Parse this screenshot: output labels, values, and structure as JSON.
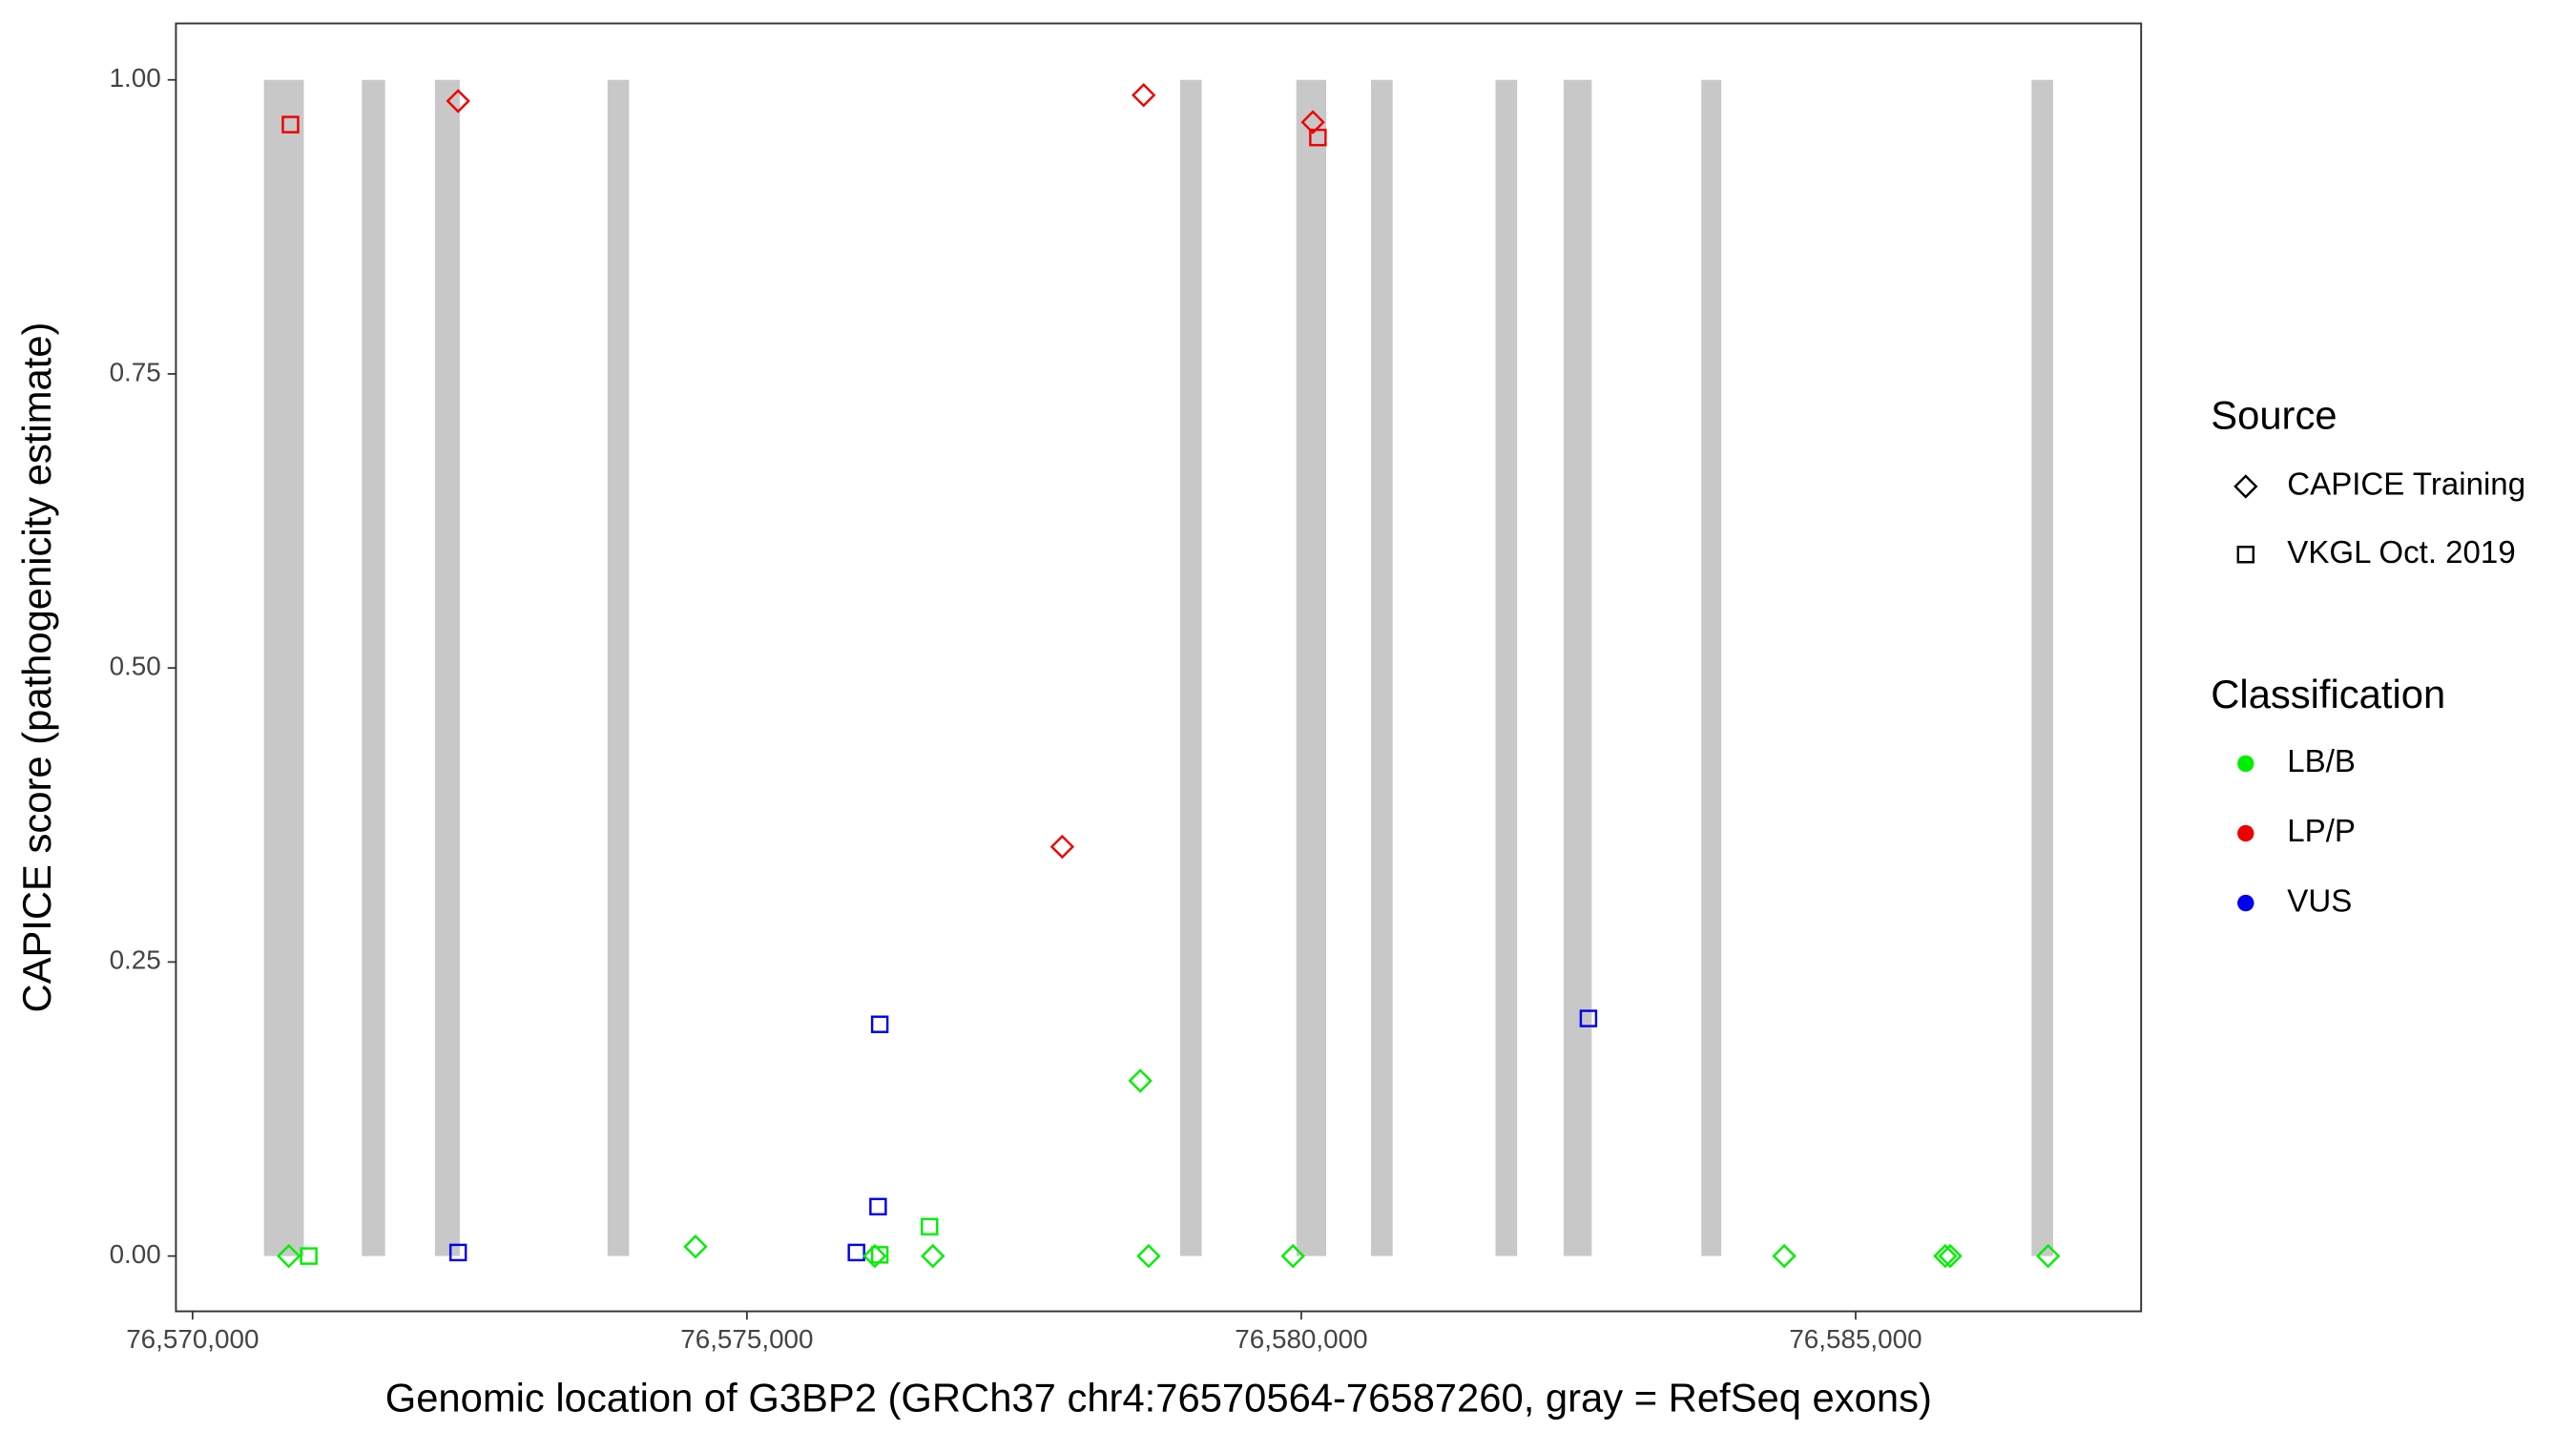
{
  "chart_data": {
    "type": "scatter",
    "x_label": "Genomic location of G3BP2 (GRCh37 chr4:76570564-76587260, gray = RefSeq exons)",
    "y_label": "CAPICE score (pathogenicity estimate)",
    "xlim": [
      76569850,
      76587575
    ],
    "ylim": [
      -0.047,
      1.048
    ],
    "xticks": [
      {
        "value": 76570000,
        "label": "76,570,000"
      },
      {
        "value": 76575000,
        "label": "76,575,000"
      },
      {
        "value": 76580000,
        "label": "76,580,000"
      },
      {
        "value": 76585000,
        "label": "76,585,000"
      }
    ],
    "yticks": [
      {
        "value": 0,
        "label": "0.00"
      },
      {
        "value": 0.25,
        "label": "0.25"
      },
      {
        "value": 0.5,
        "label": "0.50"
      },
      {
        "value": 0.75,
        "label": "0.75"
      },
      {
        "value": 1,
        "label": "1.00"
      }
    ],
    "grid": false,
    "exon_color": "#c8c8c8",
    "exon_y": [
      0,
      1
    ],
    "exons": [
      {
        "start": 76570644,
        "end": 76571003
      },
      {
        "start": 76571527,
        "end": 76571737
      },
      {
        "start": 76572186,
        "end": 76572410
      },
      {
        "start": 76573743,
        "end": 76573937
      },
      {
        "start": 76578907,
        "end": 76579102
      },
      {
        "start": 76579955,
        "end": 76580225
      },
      {
        "start": 76580629,
        "end": 76580824
      },
      {
        "start": 76581752,
        "end": 76581947
      },
      {
        "start": 76582366,
        "end": 76582620
      },
      {
        "start": 76583608,
        "end": 76583788
      },
      {
        "start": 76586587,
        "end": 76586781
      }
    ],
    "legend_position": "right",
    "source_legend": {
      "title": "Source",
      "items": [
        {
          "name": "CAPICE Training",
          "shape": "diamond"
        },
        {
          "name": "VKGL Oct. 2019",
          "shape": "square"
        }
      ]
    },
    "classification_legend": {
      "title": "Classification",
      "items": [
        {
          "name": "LB/B",
          "color": "#00ee00"
        },
        {
          "name": "LP/P",
          "color": "#ee0000"
        },
        {
          "name": "VUS",
          "color": "#0000ee"
        }
      ]
    },
    "points": [
      {
        "x": 76570883,
        "y": 0.962,
        "source": "VKGL Oct. 2019",
        "classification": "LP/P"
      },
      {
        "x": 76572395,
        "y": 0.982,
        "source": "CAPICE Training",
        "classification": "LP/P"
      },
      {
        "x": 76578578,
        "y": 0.987,
        "source": "CAPICE Training",
        "classification": "LP/P"
      },
      {
        "x": 76580105,
        "y": 0.964,
        "source": "CAPICE Training",
        "classification": "LP/P"
      },
      {
        "x": 76580150,
        "y": 0.951,
        "source": "VKGL Oct. 2019",
        "classification": "LP/P"
      },
      {
        "x": 76577844,
        "y": 0.348,
        "source": "CAPICE Training",
        "classification": "LP/P"
      },
      {
        "x": 76576198,
        "y": 0.197,
        "source": "VKGL Oct. 2019",
        "classification": "VUS"
      },
      {
        "x": 76582590,
        "y": 0.202,
        "source": "VKGL Oct. 2019",
        "classification": "VUS"
      },
      {
        "x": 76576183,
        "y": 0.042,
        "source": "VKGL Oct. 2019",
        "classification": "VUS"
      },
      {
        "x": 76572395,
        "y": 0.003,
        "source": "VKGL Oct. 2019",
        "classification": "VUS"
      },
      {
        "x": 76575988,
        "y": 0.003,
        "source": "VKGL Oct. 2019",
        "classification": "VUS"
      },
      {
        "x": 76578548,
        "y": 0.149,
        "source": "CAPICE Training",
        "classification": "LB/B"
      },
      {
        "x": 76576647,
        "y": 0.025,
        "source": "VKGL Oct. 2019",
        "classification": "LB/B"
      },
      {
        "x": 76570868,
        "y": 0,
        "source": "CAPICE Training",
        "classification": "LB/B"
      },
      {
        "x": 76571048,
        "y": 0,
        "source": "VKGL Oct. 2019",
        "classification": "LB/B"
      },
      {
        "x": 76574536,
        "y": 0.008,
        "source": "CAPICE Training",
        "classification": "LB/B"
      },
      {
        "x": 76576153,
        "y": 0,
        "source": "CAPICE Training",
        "classification": "LB/B"
      },
      {
        "x": 76576198,
        "y": 0.001,
        "source": "VKGL Oct. 2019",
        "classification": "LB/B"
      },
      {
        "x": 76576677,
        "y": 0,
        "source": "CAPICE Training",
        "classification": "LB/B"
      },
      {
        "x": 76578623,
        "y": 0,
        "source": "CAPICE Training",
        "classification": "LB/B"
      },
      {
        "x": 76579925,
        "y": 0,
        "source": "CAPICE Training",
        "classification": "LB/B"
      },
      {
        "x": 76584356,
        "y": 0,
        "source": "CAPICE Training",
        "classification": "LB/B"
      },
      {
        "x": 76585808,
        "y": 0,
        "source": "CAPICE Training",
        "classification": "LB/B"
      },
      {
        "x": 76585853,
        "y": 0,
        "source": "CAPICE Training",
        "classification": "LB/B"
      },
      {
        "x": 76586736,
        "y": 0,
        "source": "CAPICE Training",
        "classification": "LB/B"
      }
    ]
  }
}
